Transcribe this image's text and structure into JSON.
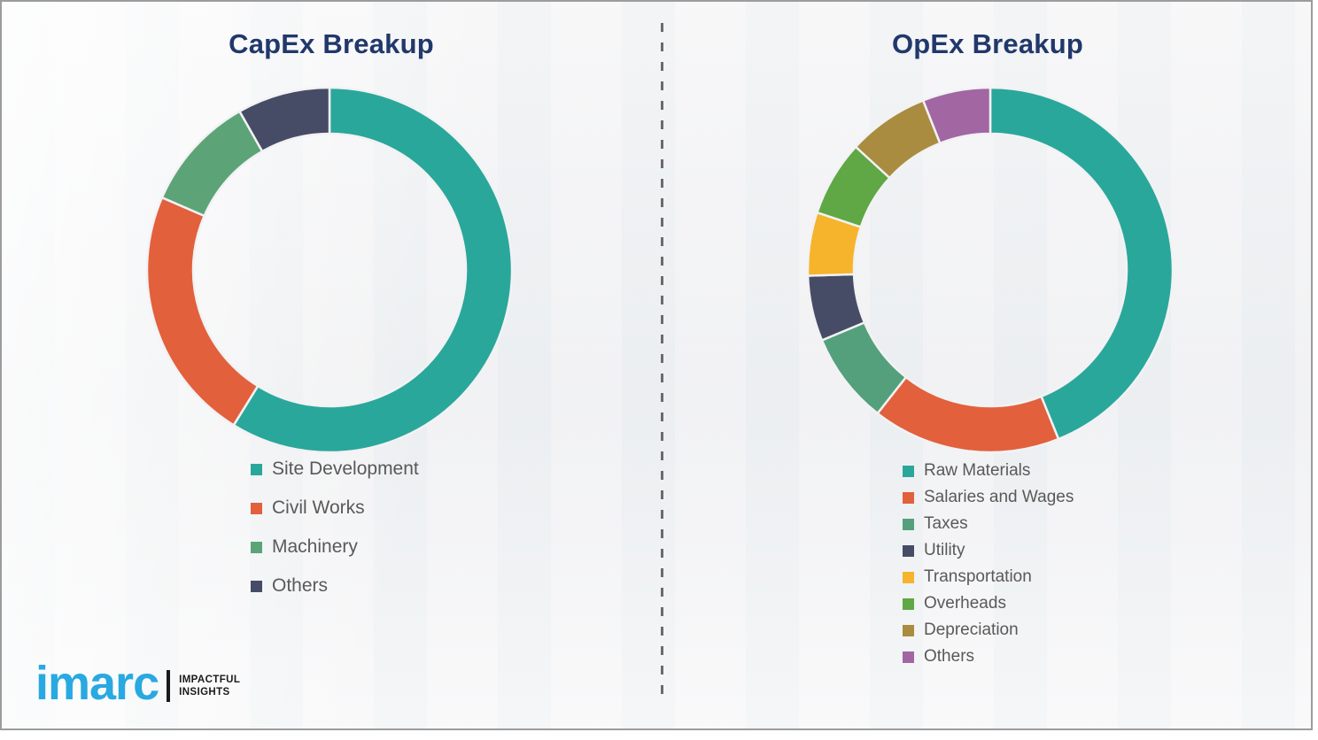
{
  "colors": {
    "title": "#21386B",
    "legend_text": "#595959",
    "divider": "#6B6B6B",
    "frame_border": "#9C9C9C",
    "canvas_bg": "#F2F2F4",
    "logo_blue": "#29A9E1",
    "logo_dark": "#1A1A1A"
  },
  "branding": {
    "logo_text": "imarc",
    "tagline_line1": "IMPACTFUL",
    "tagline_line2": "INSIGHTS"
  },
  "chart_data": [
    {
      "type": "pie",
      "subtype": "donut",
      "title": "CapEx Breakup",
      "labels": [
        "Site Development",
        "Civil Works",
        "Machinery",
        "Others"
      ],
      "values": [
        58.8,
        22.7,
        10.3,
        8.2
      ],
      "colors": [
        "#2AA79B",
        "#E2603C",
        "#5CA477",
        "#474C66"
      ],
      "start_angle_deg": 0,
      "direction": "clockwise",
      "legend_position": "below-left",
      "data_labels": false
    },
    {
      "type": "pie",
      "subtype": "donut",
      "title": "OpEx Breakup",
      "labels": [
        "Raw Materials",
        "Salaries and Wages",
        "Taxes",
        "Utility",
        "Transportation",
        "Overheads",
        "Depreciation",
        "Others"
      ],
      "values": [
        43.9,
        16.7,
        8.1,
        5.8,
        5.6,
        6.7,
        7.2,
        6.0
      ],
      "colors": [
        "#2AA79B",
        "#E2603C",
        "#55A07C",
        "#474C66",
        "#F6B42C",
        "#5FA845",
        "#A98C3F",
        "#A266A3"
      ],
      "start_angle_deg": 0,
      "direction": "clockwise",
      "legend_position": "below-left",
      "data_labels": false
    }
  ]
}
